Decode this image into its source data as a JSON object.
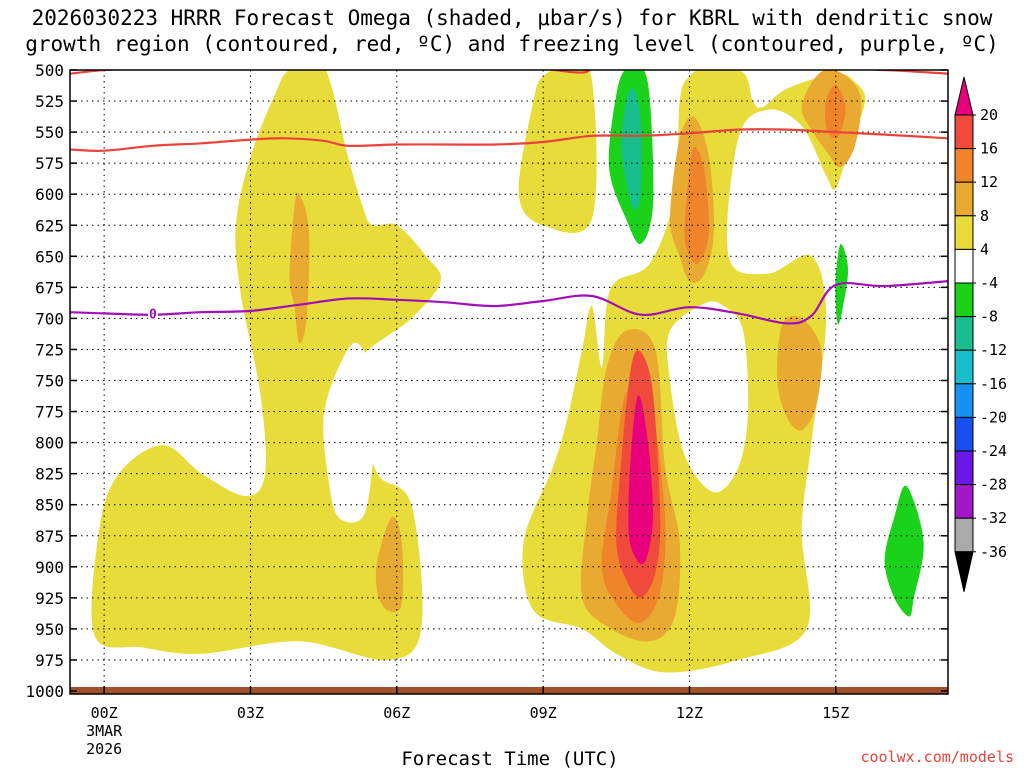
{
  "chart_data": {
    "type": "heatmap",
    "title_line1": "2026030223 HRRR Forecast Omega (shaded, μbar/s) for KBRL with dendritic snow",
    "title_line2": "growth region (contoured, red, ºC) and freezing level (contoured, purple, ºC)",
    "xlabel": "Forecast Time (UTC)",
    "ylabel": "",
    "watermark": "coolwx.com/models",
    "x_range_hours": [
      -0.7,
      17.3
    ],
    "y_range_hpa": [
      500,
      1000
    ],
    "y_ticks": [
      "500",
      "525",
      "550",
      "575",
      "600",
      "625",
      "650",
      "675",
      "700",
      "725",
      "750",
      "775",
      "800",
      "825",
      "850",
      "875",
      "900",
      "925",
      "950",
      "975",
      "1000"
    ],
    "x_ticks": [
      {
        "hour": 0,
        "label": "00Z",
        "sub1": "3MAR",
        "sub2": "2026"
      },
      {
        "hour": 3,
        "label": "03Z"
      },
      {
        "hour": 6,
        "label": "06Z"
      },
      {
        "hour": 9,
        "label": "09Z"
      },
      {
        "hour": 12,
        "label": "12Z"
      },
      {
        "hour": 15,
        "label": "15Z"
      }
    ],
    "grid": "dotted",
    "colorbar": {
      "labels": [
        "20",
        "16",
        "12",
        "8",
        "4",
        "-4",
        "-8",
        "-12",
        "-16",
        "-20",
        "-24",
        "-28",
        "-32",
        "-36"
      ],
      "colors": [
        "#e8007c",
        "#f04a3c",
        "#f0842a",
        "#e8aa30",
        "#e8dc3a",
        "#ffffff",
        "#1ad21a",
        "#18be8c",
        "#18bec8",
        "#1890f0",
        "#1850f0",
        "#6a18e6",
        "#a218c8",
        "#aaaaaa"
      ]
    },
    "color_levels": {
      "pos4": "#e8dc3a",
      "pos8": "#e8aa30",
      "pos12": "#f0842a",
      "pos16": "#f04a3c",
      "pos20": "#e8007c",
      "neg4": "#1ad21a",
      "neg8": "#18be8c",
      "neg12": "#18bec8",
      "dgz": "#e8443c",
      "freezing": "#a010b4",
      "ground": "#a0522d"
    },
    "dgz_upper_line": [
      [
        -0.7,
        503
      ],
      [
        0.5,
        499
      ],
      [
        4,
        497
      ],
      [
        6,
        498
      ],
      [
        8,
        498
      ],
      [
        9,
        499
      ],
      [
        9.8,
        502
      ],
      [
        10.5,
        496
      ],
      [
        14,
        497
      ],
      [
        16,
        500
      ],
      [
        17.3,
        503
      ]
    ],
    "dgz_lower_line": [
      [
        -0.7,
        564
      ],
      [
        0,
        565
      ],
      [
        1,
        561
      ],
      [
        2,
        559
      ],
      [
        3,
        556
      ],
      [
        3.7,
        555
      ],
      [
        4.5,
        557
      ],
      [
        5,
        561
      ],
      [
        6,
        560
      ],
      [
        7,
        560
      ],
      [
        8,
        560
      ],
      [
        9,
        558
      ],
      [
        10,
        553
      ],
      [
        11,
        553
      ],
      [
        12,
        551
      ],
      [
        13,
        548
      ],
      [
        14,
        548
      ],
      [
        15,
        550
      ],
      [
        16,
        552
      ],
      [
        17.3,
        555
      ]
    ],
    "freezing_level_line": [
      [
        -0.7,
        695
      ],
      [
        0,
        696
      ],
      [
        1,
        697
      ],
      [
        2,
        695
      ],
      [
        3,
        694
      ],
      [
        4,
        689
      ],
      [
        5,
        684
      ],
      [
        6,
        685
      ],
      [
        7,
        687
      ],
      [
        8,
        690
      ],
      [
        9,
        686
      ],
      [
        10,
        682
      ],
      [
        11,
        697
      ],
      [
        12,
        691
      ],
      [
        13,
        696
      ],
      [
        14,
        704
      ],
      [
        14.5,
        698
      ],
      [
        15,
        673
      ],
      [
        16,
        674
      ],
      [
        17.3,
        670
      ]
    ],
    "freezing_label": {
      "hour": 1.0,
      "hpa": 697,
      "text": "0"
    },
    "shaded_regions": [
      {
        "level": "pos4",
        "points": [
          [
            -0.2,
            955
          ],
          [
            -0.1,
            870
          ],
          [
            0.3,
            825
          ],
          [
            1.2,
            802
          ],
          [
            2,
            825
          ],
          [
            2.9,
            843
          ],
          [
            3.3,
            825
          ],
          [
            3.2,
            760
          ],
          [
            2.8,
            680
          ],
          [
            2.7,
            625
          ],
          [
            3,
            570
          ],
          [
            3.5,
            520
          ],
          [
            3.8,
            500
          ],
          [
            4.5,
            497
          ],
          [
            5,
            570
          ],
          [
            5.3,
            610
          ],
          [
            5.5,
            625
          ],
          [
            6,
            625
          ],
          [
            6.6,
            650
          ],
          [
            6.9,
            670
          ],
          [
            6.3,
            700
          ],
          [
            5.2,
            735
          ],
          [
            5.3,
            775
          ],
          [
            5.6,
            825
          ],
          [
            6.3,
            850
          ],
          [
            6.5,
            950
          ],
          [
            5.8,
            975
          ],
          [
            4,
            960
          ],
          [
            2,
            970
          ],
          [
            0.8,
            965
          ]
        ]
      },
      {
        "level": "pos4",
        "points": [
          [
            8.5,
            600
          ],
          [
            8.8,
            525
          ],
          [
            9,
            505
          ],
          [
            9.5,
            498
          ],
          [
            10,
            508
          ],
          [
            10,
            620
          ],
          [
            9,
            625
          ]
        ]
      },
      {
        "level": "pos4",
        "points": [
          [
            10.2,
            740
          ],
          [
            10.3,
            690
          ],
          [
            10.5,
            670
          ],
          [
            11.2,
            655
          ],
          [
            11.7,
            600
          ],
          [
            11.8,
            525
          ],
          [
            12,
            505
          ],
          [
            12.4,
            498
          ],
          [
            13.1,
            502
          ],
          [
            13.3,
            525
          ],
          [
            13.5,
            530
          ],
          [
            14,
            515
          ],
          [
            15,
            503
          ],
          [
            15.4,
            510
          ],
          [
            15.6,
            525
          ],
          [
            15.3,
            560
          ],
          [
            15,
            595
          ],
          [
            14.8,
            585
          ],
          [
            14.3,
            545
          ],
          [
            13.6,
            532
          ],
          [
            13,
            555
          ],
          [
            12.8,
            650
          ],
          [
            13.6,
            664
          ],
          [
            14.5,
            650
          ],
          [
            14.8,
            700
          ],
          [
            14.5,
            800
          ],
          [
            14.3,
            870
          ],
          [
            14.4,
            950
          ],
          [
            13,
            975
          ],
          [
            11.5,
            985
          ],
          [
            10.5,
            970
          ],
          [
            9.8,
            950
          ],
          [
            8.8,
            935
          ],
          [
            8.6,
            880
          ],
          [
            9.2,
            820
          ],
          [
            9.5,
            780
          ],
          [
            9.8,
            725
          ],
          [
            10,
            690
          ]
        ]
      },
      {
        "level": "pos8",
        "points": [
          [
            3.8,
            667
          ],
          [
            3.9,
            610
          ],
          [
            4,
            600
          ],
          [
            4.2,
            630
          ],
          [
            4.15,
            700
          ],
          [
            4,
            720
          ],
          [
            3.9,
            690
          ]
        ]
      },
      {
        "level": "pos8",
        "points": [
          [
            5.6,
            920
          ],
          [
            5.6,
            895
          ],
          [
            5.9,
            860
          ],
          [
            6.1,
            880
          ],
          [
            6.1,
            930
          ],
          [
            5.8,
            935
          ]
        ]
      },
      {
        "level": "pos8",
        "points": [
          [
            9.8,
            925
          ],
          [
            9.9,
            860
          ],
          [
            10.1,
            800
          ],
          [
            10.3,
            740
          ],
          [
            10.7,
            710
          ],
          [
            11.3,
            725
          ],
          [
            11.5,
            820
          ],
          [
            11.8,
            880
          ],
          [
            11.7,
            940
          ],
          [
            11.2,
            960
          ],
          [
            10.4,
            950
          ]
        ]
      },
      {
        "level": "pos8",
        "points": [
          [
            11.6,
            620
          ],
          [
            11.8,
            555
          ],
          [
            12.1,
            538
          ],
          [
            12.4,
            570
          ],
          [
            12.5,
            630
          ],
          [
            12.3,
            665
          ],
          [
            12,
            670
          ],
          [
            11.8,
            650
          ]
        ]
      },
      {
        "level": "pos8",
        "points": [
          [
            13.8,
            750
          ],
          [
            13.9,
            705
          ],
          [
            14.3,
            700
          ],
          [
            14.7,
            725
          ],
          [
            14.6,
            770
          ],
          [
            14.3,
            790
          ],
          [
            14.0,
            780
          ]
        ]
      },
      {
        "level": "pos8",
        "points": [
          [
            14.3,
            530
          ],
          [
            14.6,
            505
          ],
          [
            15,
            500
          ],
          [
            15.5,
            520
          ],
          [
            15.4,
            560
          ],
          [
            15.1,
            578
          ],
          [
            14.8,
            565
          ],
          [
            14.5,
            548
          ]
        ]
      },
      {
        "level": "pos12",
        "points": [
          [
            10.2,
            900
          ],
          [
            10.4,
            840
          ],
          [
            10.7,
            760
          ],
          [
            11.2,
            770
          ],
          [
            11.5,
            860
          ],
          [
            11.4,
            920
          ],
          [
            11,
            945
          ],
          [
            10.5,
            930
          ]
        ]
      },
      {
        "level": "pos12",
        "points": [
          [
            11.9,
            630
          ],
          [
            12,
            580
          ],
          [
            12.1,
            562
          ],
          [
            12.3,
            580
          ],
          [
            12.4,
            630
          ],
          [
            12.2,
            655
          ],
          [
            12.0,
            650
          ]
        ]
      },
      {
        "level": "pos12",
        "points": [
          [
            14.8,
            545
          ],
          [
            14.8,
            525
          ],
          [
            15,
            512
          ],
          [
            15.2,
            530
          ],
          [
            15.1,
            550
          ],
          [
            14.95,
            555
          ]
        ]
      },
      {
        "level": "pos16",
        "points": [
          [
            10.5,
            880
          ],
          [
            10.6,
            815
          ],
          [
            10.8,
            740
          ],
          [
            11,
            727
          ],
          [
            11.25,
            760
          ],
          [
            11.4,
            860
          ],
          [
            11.3,
            905
          ],
          [
            11,
            925
          ],
          [
            10.7,
            910
          ]
        ]
      },
      {
        "level": "pos20",
        "points": [
          [
            10.75,
            870
          ],
          [
            10.8,
            810
          ],
          [
            10.95,
            762
          ],
          [
            11.15,
            800
          ],
          [
            11.25,
            860
          ],
          [
            11.1,
            895
          ],
          [
            10.9,
            893
          ]
        ]
      },
      {
        "level": "neg4",
        "points": [
          [
            10.35,
            578
          ],
          [
            10.5,
            520
          ],
          [
            10.7,
            499
          ],
          [
            11.05,
            499
          ],
          [
            11.2,
            530
          ],
          [
            11.25,
            610
          ],
          [
            11,
            640
          ],
          [
            10.7,
            620
          ]
        ]
      },
      {
        "level": "neg4",
        "points": [
          [
            15,
            665
          ],
          [
            15.1,
            640
          ],
          [
            15.25,
            660
          ],
          [
            15.15,
            690
          ],
          [
            15.05,
            705
          ],
          [
            15.0,
            690
          ]
        ]
      },
      {
        "level": "neg4",
        "points": [
          [
            16.0,
            895
          ],
          [
            16.2,
            860
          ],
          [
            16.45,
            835
          ],
          [
            16.8,
            880
          ],
          [
            16.6,
            925
          ],
          [
            16.5,
            940
          ],
          [
            16.2,
            925
          ]
        ]
      },
      {
        "level": "neg4",
        "points": [
          [
            12,
            743
          ],
          [
            12.05,
            737
          ],
          [
            12.1,
            748
          ],
          [
            12.05,
            755
          ]
        ]
      },
      {
        "level": "neg8",
        "points": [
          [
            10.6,
            560
          ],
          [
            10.7,
            525
          ],
          [
            10.85,
            515
          ],
          [
            11,
            540
          ],
          [
            11,
            600
          ],
          [
            10.85,
            612
          ],
          [
            10.7,
            590
          ]
        ]
      }
    ],
    "white_holes": [
      {
        "points": [
          [
            4.6,
            830
          ],
          [
            4.5,
            780
          ],
          [
            4.8,
            740
          ],
          [
            5.2,
            720
          ],
          [
            5.6,
            760
          ],
          [
            5.5,
            820
          ],
          [
            5.3,
            860
          ],
          [
            4.8,
            860
          ]
        ]
      },
      {
        "points": [
          [
            11.6,
            710
          ],
          [
            12.3,
            688
          ],
          [
            12.7,
            690
          ],
          [
            13.1,
            710
          ],
          [
            13.2,
            775
          ],
          [
            13,
            820
          ],
          [
            12.5,
            840
          ],
          [
            11.9,
            810
          ],
          [
            11.6,
            750
          ]
        ]
      }
    ]
  }
}
